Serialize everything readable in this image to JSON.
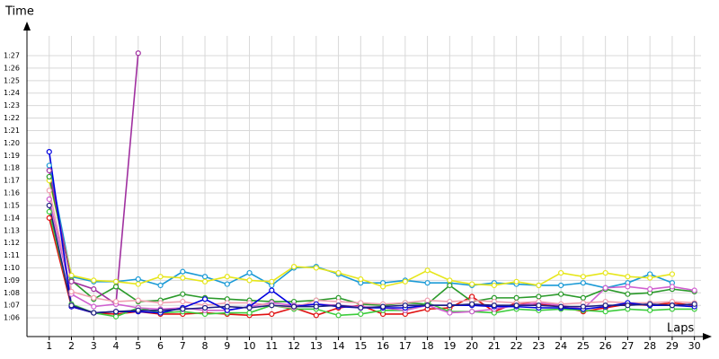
{
  "chart_data": {
    "type": "line",
    "y_label": "Time",
    "x_label": "Laps",
    "x": [
      1,
      2,
      3,
      4,
      5,
      6,
      7,
      8,
      9,
      10,
      11,
      12,
      13,
      14,
      15,
      16,
      17,
      18,
      19,
      20,
      21,
      22,
      23,
      24,
      25,
      26,
      27,
      28,
      29,
      30
    ],
    "xlim": [
      0,
      30.7
    ],
    "ylim": [
      64.5,
      89.3
    ],
    "yticks": [
      {
        "value": 66,
        "label": "1:06"
      },
      {
        "value": 67,
        "label": "1:07"
      },
      {
        "value": 68,
        "label": "1:08"
      },
      {
        "value": 69,
        "label": "1:09"
      },
      {
        "value": 70,
        "label": "1:10"
      },
      {
        "value": 71,
        "label": "1:11"
      },
      {
        "value": 72,
        "label": "1:12"
      },
      {
        "value": 73,
        "label": "1:13"
      },
      {
        "value": 74,
        "label": "1:14"
      },
      {
        "value": 75,
        "label": "1:15"
      },
      {
        "value": 76,
        "label": "1:16"
      },
      {
        "value": 77,
        "label": "1:17"
      },
      {
        "value": 78,
        "label": "1:18"
      },
      {
        "value": 79,
        "label": "1:19"
      },
      {
        "value": 80,
        "label": "1:20"
      },
      {
        "value": 81,
        "label": "1:21"
      },
      {
        "value": 82,
        "label": "1:22"
      },
      {
        "value": 83,
        "label": "1:23"
      },
      {
        "value": 84,
        "label": "1:24"
      },
      {
        "value": 85,
        "label": "1:25"
      },
      {
        "value": 86,
        "label": "1:26"
      },
      {
        "value": 87,
        "label": "1:27"
      }
    ],
    "grid": true,
    "series": [
      {
        "color": "#1a9ad6",
        "values": [
          78.2,
          69.3,
          68.9,
          68.9,
          69.1,
          68.6,
          69.7,
          69.3,
          68.7,
          69.6,
          68.6,
          70.0,
          70.1,
          69.5,
          68.8,
          68.8,
          69.0,
          68.8,
          68.8,
          68.6,
          68.8,
          68.7,
          68.6,
          68.6,
          68.8,
          68.4,
          68.8,
          69.5,
          68.8,
          null
        ]
      },
      {
        "color": "#e6e61a",
        "values": [
          77.0,
          69.4,
          69.0,
          68.9,
          68.7,
          69.3,
          69.2,
          68.9,
          69.3,
          69.0,
          68.9,
          70.1,
          70.0,
          69.6,
          69.1,
          68.5,
          68.9,
          69.8,
          69.0,
          68.7,
          68.6,
          68.9,
          68.6,
          69.6,
          69.3,
          69.6,
          69.3,
          69.2,
          69.5,
          null
        ]
      },
      {
        "color": "#e01010",
        "values": [
          74.0,
          66.9,
          66.4,
          66.3,
          66.5,
          66.3,
          66.3,
          66.4,
          66.3,
          66.2,
          66.3,
          66.8,
          66.2,
          66.8,
          67.0,
          66.3,
          66.3,
          66.7,
          66.8,
          67.7,
          66.5,
          67.2,
          67.1,
          66.9,
          66.5,
          66.8,
          67.1,
          67.0,
          67.2,
          67.0
        ]
      },
      {
        "color": "#2a9a2a",
        "values": [
          77.3,
          69.0,
          67.5,
          68.5,
          67.3,
          67.4,
          67.9,
          67.6,
          67.5,
          67.4,
          67.3,
          67.3,
          67.4,
          67.6,
          67.1,
          67.0,
          67.2,
          67.1,
          68.6,
          67.3,
          67.6,
          67.6,
          67.7,
          67.9,
          67.6,
          68.3,
          67.9,
          68.0,
          68.3,
          68.1
        ]
      },
      {
        "color": "#3ccc3c",
        "values": [
          74.5,
          67.1,
          66.4,
          66.1,
          66.8,
          66.4,
          66.5,
          66.3,
          66.4,
          66.4,
          67.0,
          66.7,
          66.7,
          66.2,
          66.3,
          66.6,
          66.6,
          67.2,
          66.5,
          66.5,
          66.4,
          66.7,
          66.6,
          66.7,
          66.6,
          66.5,
          66.7,
          66.6,
          66.7,
          66.7
        ]
      },
      {
        "color": "#a030a0",
        "values": [
          77.8,
          68.9,
          68.3,
          67.1,
          87.2,
          null,
          null,
          null,
          null,
          null,
          null,
          null,
          null,
          null,
          null,
          null,
          null,
          null,
          null,
          null,
          null,
          null,
          null,
          null,
          null,
          null,
          null,
          null,
          null,
          null
        ]
      },
      {
        "color": "#d060d0",
        "values": [
          75.5,
          67.9,
          66.9,
          67.1,
          66.8,
          66.7,
          66.8,
          66.6,
          66.6,
          66.9,
          67.2,
          67.0,
          67.1,
          67.0,
          66.9,
          66.8,
          66.6,
          67.0,
          66.4,
          66.5,
          66.7,
          67.0,
          67.2,
          67.0,
          66.7,
          68.4,
          68.5,
          68.3,
          68.5,
          68.2
        ]
      },
      {
        "color": "#f0a0b0",
        "values": [
          76.2,
          68.1,
          67.6,
          67.3,
          67.4,
          67.2,
          67.3,
          67.0,
          67.2,
          67.2,
          67.0,
          66.8,
          67.4,
          67.3,
          67.2,
          67.1,
          67.2,
          67.4,
          67.3,
          67.4,
          67.3,
          67.2,
          67.3,
          67.1,
          67.2,
          67.3,
          67.2,
          67.2,
          67.3,
          67.2
        ]
      },
      {
        "color": "#0000e0",
        "values": [
          79.3,
          66.9,
          66.4,
          66.5,
          66.5,
          66.4,
          66.8,
          67.5,
          66.6,
          66.9,
          68.2,
          66.9,
          67.1,
          66.9,
          66.8,
          66.8,
          66.8,
          67.0,
          67.0,
          67.0,
          66.9,
          66.9,
          66.8,
          66.8,
          66.7,
          66.9,
          67.2,
          67.0,
          67.0,
          66.9
        ]
      },
      {
        "color": "#202080",
        "values": [
          75.0,
          67.0,
          66.4,
          66.5,
          66.6,
          66.6,
          66.7,
          66.8,
          66.9,
          66.8,
          67.0,
          66.9,
          66.9,
          67.0,
          66.8,
          66.9,
          67.0,
          67.0,
          67.0,
          67.1,
          67.0,
          67.0,
          67.0,
          66.9,
          66.9,
          67.0,
          67.0,
          67.1,
          67.0,
          67.1
        ]
      }
    ]
  }
}
